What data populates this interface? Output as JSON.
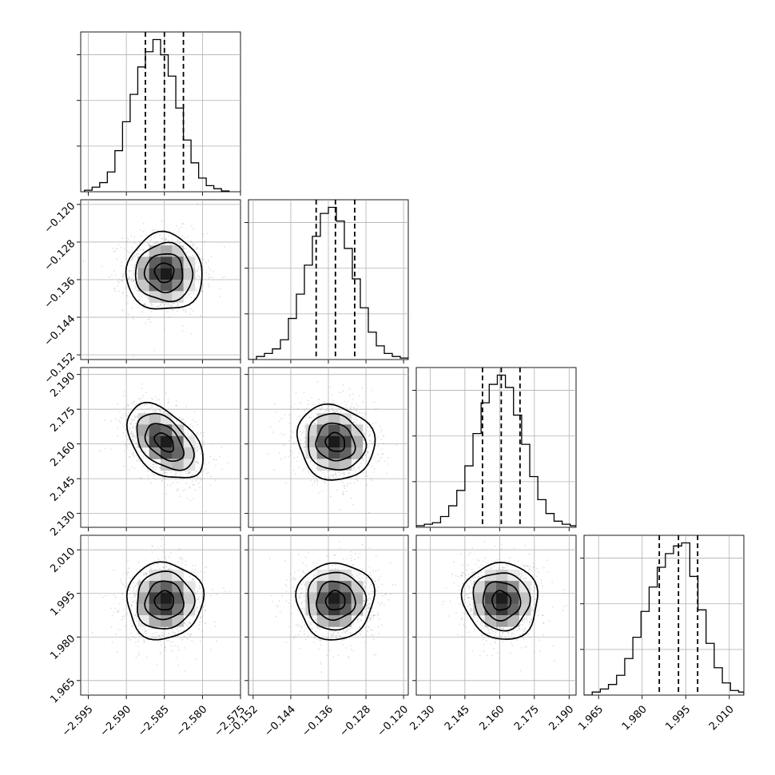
{
  "chart_data": {
    "type": "corner",
    "title": "",
    "parameters": [
      {
        "name": "",
        "range": [
          -2.596,
          -2.575
        ],
        "ticks": [
          -2.595,
          -2.59,
          -2.585,
          -2.58,
          -2.575
        ],
        "tick_labels": [
          "−2.595",
          "−2.590",
          "−2.585",
          "−2.580",
          "−2.575"
        ],
        "quantiles": [
          -2.5875,
          -2.585,
          -2.5825
        ],
        "hist_bin_edges": [
          -2.5955,
          -2.5945,
          -2.5935,
          -2.5925,
          -2.5915,
          -2.5905,
          -2.5895,
          -2.5885,
          -2.5875,
          -2.5865,
          -2.5855,
          -2.5845,
          -2.5835,
          -2.5825,
          -2.5815,
          -2.5805,
          -2.5795,
          -2.5785,
          -2.5775,
          -2.5765
        ],
        "hist_counts": [
          0.01,
          0.03,
          0.06,
          0.13,
          0.27,
          0.46,
          0.64,
          0.82,
          0.92,
          1.0,
          0.9,
          0.76,
          0.55,
          0.34,
          0.19,
          0.09,
          0.04,
          0.02,
          0.005
        ]
      },
      {
        "name": "",
        "range": [
          -0.153,
          -0.119
        ],
        "ticks": [
          -0.152,
          -0.144,
          -0.136,
          -0.128,
          -0.12
        ],
        "tick_labels": [
          "−0.152",
          "−0.144",
          "−0.136",
          "−0.128",
          "−0.120"
        ],
        "quantiles": [
          -0.1386,
          -0.1345,
          -0.1304
        ],
        "hist_bin_edges": [
          -0.153,
          -0.1513,
          -0.1496,
          -0.1479,
          -0.1462,
          -0.1445,
          -0.1428,
          -0.1411,
          -0.1394,
          -0.1377,
          -0.136,
          -0.1343,
          -0.1326,
          -0.1309,
          -0.1292,
          -0.1275,
          -0.1258,
          -0.1241,
          -0.1224,
          -0.1207,
          -0.119
        ],
        "hist_counts": [
          0.0,
          0.02,
          0.04,
          0.07,
          0.13,
          0.27,
          0.43,
          0.62,
          0.81,
          0.96,
          1.0,
          0.91,
          0.73,
          0.53,
          0.34,
          0.18,
          0.09,
          0.04,
          0.02,
          0.01
        ]
      },
      {
        "name": "",
        "range": [
          2.124,
          2.193
        ],
        "ticks": [
          2.13,
          2.145,
          2.16,
          2.175,
          2.19
        ],
        "tick_labels": [
          "2.130",
          "2.145",
          "2.160",
          "2.175",
          "2.190"
        ],
        "quantiles": [
          2.1526,
          2.1607,
          2.1688
        ],
        "hist_bin_edges": [
          2.124,
          2.1275,
          2.131,
          2.1345,
          2.138,
          2.1415,
          2.145,
          2.1485,
          2.152,
          2.1555,
          2.159,
          2.1625,
          2.166,
          2.1695,
          2.173,
          2.1765,
          2.18,
          2.1835,
          2.187,
          2.1905,
          2.193
        ],
        "hist_counts": [
          0.01,
          0.02,
          0.03,
          0.07,
          0.14,
          0.24,
          0.4,
          0.61,
          0.81,
          0.93,
          0.99,
          0.91,
          0.73,
          0.54,
          0.33,
          0.18,
          0.09,
          0.04,
          0.02,
          0.01
        ]
      },
      {
        "name": "",
        "range": [
          1.96,
          2.015
        ],
        "ticks": [
          1.965,
          1.98,
          1.995,
          2.01
        ],
        "tick_labels": [
          "1.965",
          "1.980",
          "1.995",
          "2.010"
        ],
        "quantiles": [
          1.9859,
          1.9925,
          1.9991
        ],
        "hist_bin_edges": [
          1.96,
          1.9628,
          1.9656,
          1.9684,
          1.9712,
          1.974,
          1.9768,
          1.9796,
          1.9824,
          1.9852,
          1.988,
          1.9908,
          1.9936,
          1.9964,
          1.9992,
          2.002,
          2.0048,
          2.0076,
          2.0104,
          2.0132,
          2.015
        ],
        "hist_counts": [
          0.0,
          0.02,
          0.04,
          0.07,
          0.13,
          0.24,
          0.38,
          0.55,
          0.71,
          0.84,
          0.93,
          0.98,
          1.0,
          0.78,
          0.56,
          0.34,
          0.18,
          0.08,
          0.03,
          0.02
        ]
      }
    ],
    "pair_correlations": {
      "1-0": -0.02,
      "2-0": -0.45,
      "2-1": -0.1,
      "3-0": 0.03,
      "3-1": 0.02,
      "3-2": -0.05
    },
    "contour_levels_sigma": [
      0.5,
      1.0,
      1.5,
      2.0
    ],
    "scatter": true,
    "grid": true
  }
}
